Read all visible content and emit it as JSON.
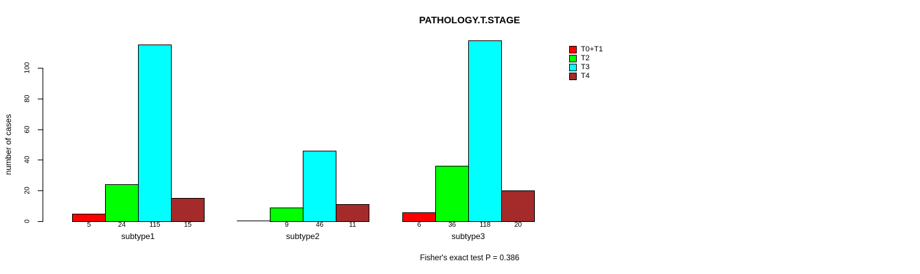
{
  "chart_data": {
    "type": "bar",
    "title": "PATHOLOGY.T.STAGE",
    "ylabel": "number of cases",
    "xlabel": "",
    "annotation": "Fisher's exact test P = 0.386",
    "categories": [
      "subtype1",
      "subtype2",
      "subtype3"
    ],
    "series": [
      {
        "name": "T0+T1",
        "color": "#ff0000",
        "values": [
          5,
          0,
          6
        ]
      },
      {
        "name": "T2",
        "color": "#00ff00",
        "values": [
          24,
          9,
          36
        ]
      },
      {
        "name": "T3",
        "color": "#00ffff",
        "values": [
          115,
          46,
          118
        ]
      },
      {
        "name": "T4",
        "color": "#a52a2a",
        "values": [
          15,
          11,
          20
        ]
      }
    ],
    "yticks": [
      0,
      20,
      40,
      60,
      80,
      100
    ],
    "ylim": [
      0,
      100
    ],
    "grid": false,
    "legend_position": "top-right",
    "bar_value_labels_shown": true,
    "zero_value_labels_hidden": true,
    "background_color": "#ffffff",
    "bar_border_color": "#000000"
  }
}
